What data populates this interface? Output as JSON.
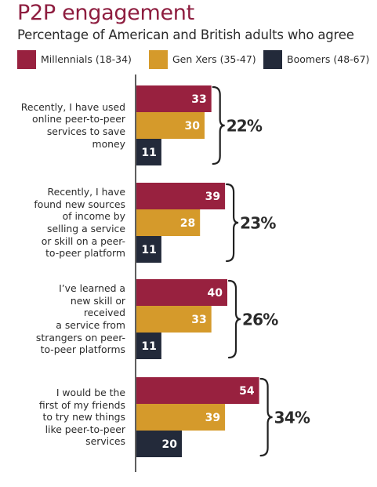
{
  "chart_data": {
    "type": "bar",
    "orientation": "horizontal",
    "title": "P2P engagement",
    "subtitle": "Percentage of American and British adults who agree",
    "xlim": [
      0,
      60
    ],
    "grid": false,
    "legend_position": "top",
    "categories": [
      "Recently, I have used online peer-to-peer services to save money",
      "Recently, I have found new sources of income by selling a service or skill on a peer-to-peer platform",
      "I've learned a new skill or received a service from strangers on peer-to-peer platforms",
      "I would be the first of my friends to try new things like peer-to-peer services"
    ],
    "category_lines": [
      [
        "Recently, I have used",
        "online peer-to-peer",
        "services to save",
        "money"
      ],
      [
        "Recently, I have",
        "found new sources",
        "of income by",
        "selling a service",
        "or skill on a peer-",
        "to-peer platform"
      ],
      [
        "I’ve learned a",
        "new skill or",
        "received",
        "a service from",
        "strangers on peer-",
        "to-peer platforms"
      ],
      [
        "I would be the",
        "first of my friends",
        "to try new things",
        "like peer-to-peer",
        "services"
      ]
    ],
    "series": [
      {
        "name": "Millennials (18-34)",
        "color": "#98213f",
        "values": [
          33,
          39,
          40,
          54
        ]
      },
      {
        "name": "Gen Xers (35-47)",
        "color": "#d59a2b",
        "values": [
          30,
          28,
          33,
          39
        ]
      },
      {
        "name": "Boomers (48-67)",
        "color": "#232a3a",
        "values": [
          11,
          11,
          11,
          20
        ]
      }
    ],
    "group_totals": [
      "22%",
      "23%",
      "26%",
      "34%"
    ]
  }
}
